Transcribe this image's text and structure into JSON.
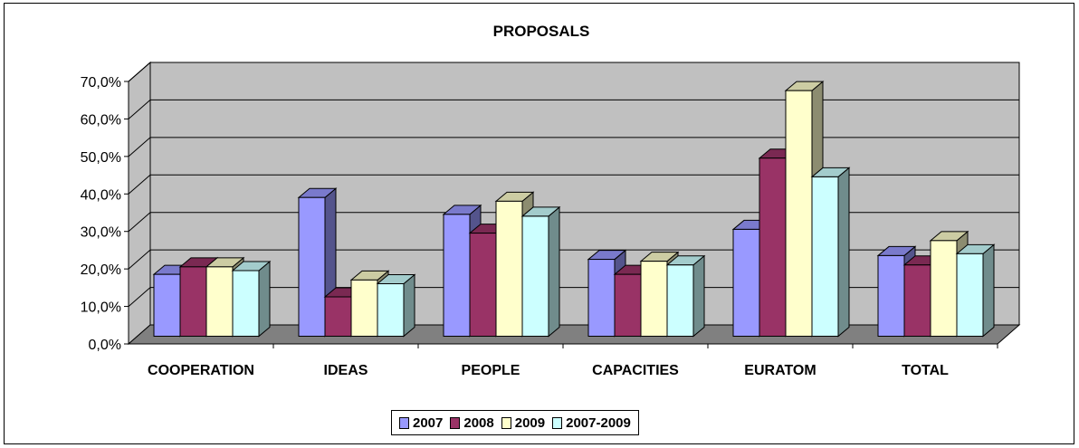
{
  "chart_data": {
    "type": "bar",
    "title": "PROPOSALS",
    "categories": [
      "COOPERATION",
      "IDEAS",
      "PEOPLE",
      "CAPACITIES",
      "EURATOM",
      "TOTAL"
    ],
    "series": [
      {
        "name": "2007",
        "color": "#9999ff",
        "values": [
          16.5,
          37.0,
          32.5,
          20.5,
          28.5,
          21.5
        ]
      },
      {
        "name": "2008",
        "color": "#993366",
        "values": [
          18.5,
          10.5,
          27.5,
          16.5,
          47.5,
          19.0
        ]
      },
      {
        "name": "2009",
        "color": "#ffffcc",
        "values": [
          18.5,
          15.0,
          36.0,
          20.0,
          65.5,
          25.5
        ]
      },
      {
        "name": "2007-2009",
        "color": "#ccffff",
        "values": [
          17.5,
          14.0,
          32.0,
          19.0,
          42.5,
          22.0
        ]
      }
    ],
    "yticks": [
      "0,0%",
      "10,0%",
      "20,0%",
      "30,0%",
      "40,0%",
      "50,0%",
      "60,0%",
      "70,0%"
    ],
    "ylim": [
      0,
      70
    ],
    "grid": true,
    "legend_position": "bottom"
  }
}
